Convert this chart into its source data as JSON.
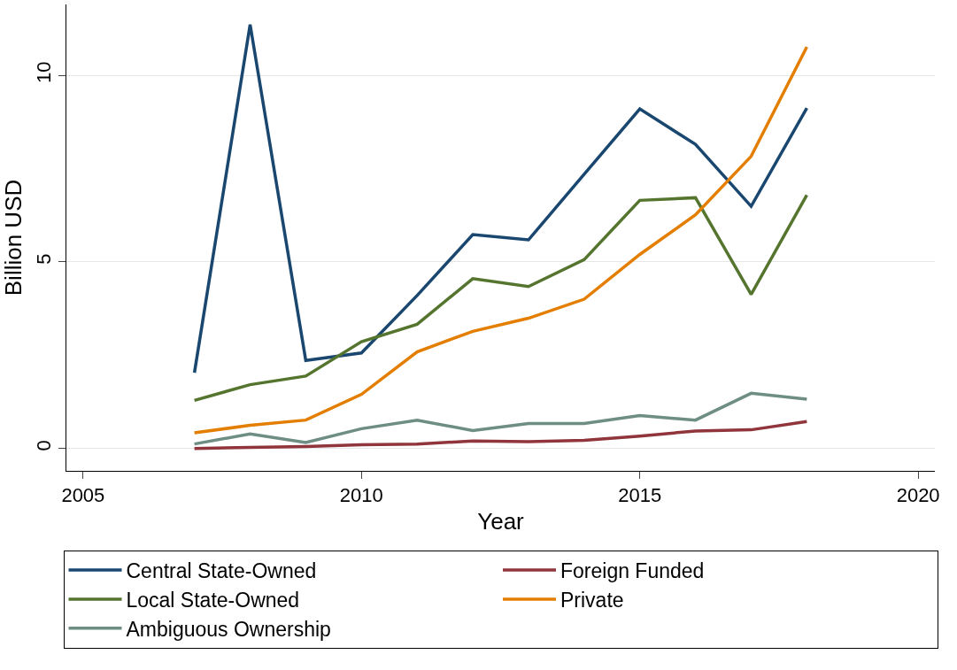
{
  "chart_data": {
    "type": "line",
    "xlabel": "Year",
    "ylabel": "Billion USD",
    "x": [
      2007,
      2008,
      2009,
      2010,
      2011,
      2012,
      2013,
      2014,
      2015,
      2016,
      2017,
      2018
    ],
    "series": [
      {
        "name": "Central State-Owned",
        "color": "#1a476f",
        "values": [
          2.03,
          11.36,
          2.36,
          2.56,
          4.1,
          5.73,
          5.59,
          7.35,
          9.1,
          8.15,
          6.49,
          9.12
        ]
      },
      {
        "name": "Foreign Funded",
        "color": "#90353b",
        "values": [
          0.0,
          0.03,
          0.05,
          0.1,
          0.12,
          0.2,
          0.18,
          0.22,
          0.33,
          0.47,
          0.5,
          0.72
        ]
      },
      {
        "name": "Local State-Owned",
        "color": "#55752f",
        "values": [
          1.29,
          1.71,
          1.94,
          2.86,
          3.33,
          4.55,
          4.34,
          5.06,
          6.65,
          6.72,
          4.13,
          6.79
        ]
      },
      {
        "name": "Private",
        "color": "#e37e00",
        "values": [
          0.42,
          0.62,
          0.76,
          1.45,
          2.59,
          3.14,
          3.49,
          4.0,
          5.2,
          6.26,
          7.83,
          10.76
        ]
      },
      {
        "name": "Ambiguous Ownership",
        "color": "#6e8e84",
        "values": [
          0.12,
          0.39,
          0.16,
          0.53,
          0.76,
          0.48,
          0.67,
          0.67,
          0.88,
          0.76,
          1.48,
          1.32
        ]
      }
    ],
    "xlim": [
      2004.7,
      2020.3
    ],
    "xticks": [
      2005,
      2010,
      2015,
      2020
    ],
    "ylim": [
      -0.6,
      11.9
    ],
    "yticks": [
      0,
      5,
      10
    ],
    "grid": "y",
    "legend": "bottom",
    "marker": "none",
    "line_style": "solid"
  }
}
